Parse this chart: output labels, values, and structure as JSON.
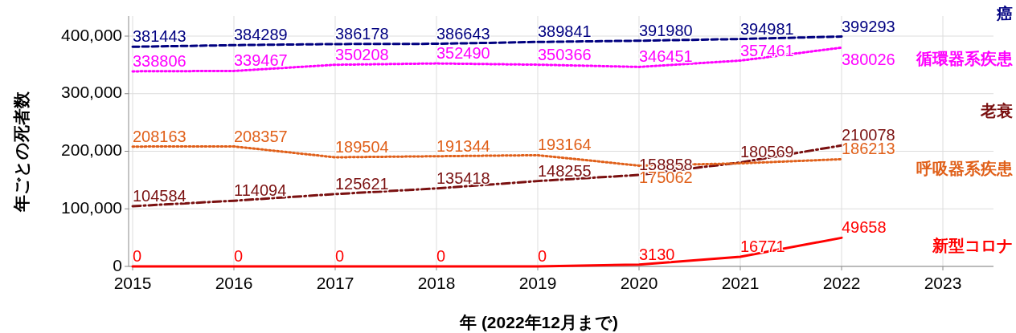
{
  "chart_data": {
    "type": "line",
    "xlabel": "年 (2022年12月まで)",
    "ylabel": "年ごとの死者数",
    "x": [
      2015,
      2016,
      2017,
      2018,
      2019,
      2020,
      2021,
      2022
    ],
    "xlim": [
      2015,
      2023.5
    ],
    "xticks": [
      2015,
      2016,
      2017,
      2018,
      2019,
      2020,
      2021,
      2022,
      2023
    ],
    "ylim": [
      0,
      400000
    ],
    "yticks": [
      {
        "value": 0,
        "label": "0"
      },
      {
        "value": 100000,
        "label": "100,000"
      },
      {
        "value": 200000,
        "label": "200,000"
      },
      {
        "value": 300000,
        "label": "300,000"
      },
      {
        "value": 400000,
        "label": "400,000"
      }
    ],
    "grid": true,
    "marker": "none",
    "series": [
      {
        "name": "癌",
        "color": "#000080",
        "line_style": "dashed",
        "values": [
          381443,
          384289,
          386178,
          386643,
          389841,
          391980,
          394981,
          399293
        ],
        "value_labels": [
          "381443",
          "384289",
          "386178",
          "386643",
          "389841",
          "391980",
          "394981",
          "399293"
        ]
      },
      {
        "name": "循環器系疾患",
        "color": "#ff00ff",
        "line_style": "dotted",
        "values": [
          338806,
          339467,
          350208,
          352490,
          350366,
          346451,
          357461,
          380026
        ],
        "value_labels": [
          "338806",
          "339467",
          "350208",
          "352490",
          "350366",
          "346451",
          "357461",
          "380026"
        ]
      },
      {
        "name": "老衰",
        "color": "#7a1010",
        "line_style": "dashdot",
        "values": [
          104584,
          114094,
          125621,
          135418,
          148255,
          158858,
          180569,
          210078
        ],
        "value_labels": [
          "104584",
          "114094",
          "125621",
          "135418",
          "148255",
          "158858",
          "180569",
          "210078"
        ]
      },
      {
        "name": "呼吸器系疾患",
        "color": "#e0601a",
        "line_style": "dotted",
        "values": [
          208163,
          208357,
          189504,
          191344,
          193164,
          175062,
          179000,
          186213
        ],
        "value_labels": [
          "208163",
          "208357",
          "189504",
          "191344",
          "193164",
          "175062",
          null,
          "186213"
        ]
      },
      {
        "name": "新型コロナ",
        "color": "#ff0000",
        "line_style": "solid",
        "values": [
          0,
          0,
          0,
          0,
          0,
          3130,
          16771,
          49658
        ],
        "value_labels": [
          "0",
          "0",
          "0",
          "0",
          "0",
          "3130",
          "16771",
          "49658"
        ]
      }
    ]
  }
}
